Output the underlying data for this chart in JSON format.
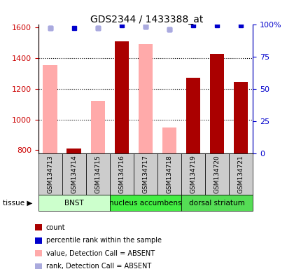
{
  "title": "GDS2344 / 1433388_at",
  "samples": [
    "GSM134713",
    "GSM134714",
    "GSM134715",
    "GSM134716",
    "GSM134717",
    "GSM134718",
    "GSM134719",
    "GSM134720",
    "GSM134721"
  ],
  "count_values": [
    null,
    810,
    null,
    1510,
    null,
    null,
    1270,
    1425,
    1245
  ],
  "absent_values": [
    1355,
    null,
    1120,
    null,
    1490,
    950,
    null,
    null,
    null
  ],
  "percentile_rank": [
    97,
    97,
    97,
    99,
    98,
    96,
    99,
    99,
    99
  ],
  "absent_rank": [
    97,
    null,
    97,
    null,
    98,
    96,
    null,
    null,
    null
  ],
  "ylim_left": [
    780,
    1620
  ],
  "ylim_right": [
    0,
    100
  ],
  "yticks_left": [
    800,
    1000,
    1200,
    1400,
    1600
  ],
  "yticks_right": [
    0,
    25,
    50,
    75,
    100
  ],
  "ytick_labels_right": [
    "0",
    "25",
    "50",
    "75",
    "100%"
  ],
  "grid_lines": [
    1000,
    1200,
    1400
  ],
  "tissues": [
    {
      "label": "BNST",
      "start": 0,
      "end": 3,
      "color": "#ccffcc"
    },
    {
      "label": "nucleus accumbens",
      "start": 3,
      "end": 6,
      "color": "#44ee44"
    },
    {
      "label": "dorsal striatum",
      "start": 6,
      "end": 9,
      "color": "#55dd55"
    }
  ],
  "bar_width": 0.6,
  "count_color": "#aa0000",
  "absent_color": "#ffaaaa",
  "rank_dot_color": "#0000cc",
  "absent_rank_dot_color": "#aaaadd",
  "left_axis_color": "#cc0000",
  "right_axis_color": "#0000cc",
  "background_color": "#ffffff",
  "plot_bg_color": "#ffffff",
  "xtick_box_color": "#cccccc",
  "legend_items": [
    {
      "label": "count",
      "color": "#aa0000"
    },
    {
      "label": "percentile rank within the sample",
      "color": "#0000cc"
    },
    {
      "label": "value, Detection Call = ABSENT",
      "color": "#ffaaaa"
    },
    {
      "label": "rank, Detection Call = ABSENT",
      "color": "#aaaadd"
    }
  ]
}
